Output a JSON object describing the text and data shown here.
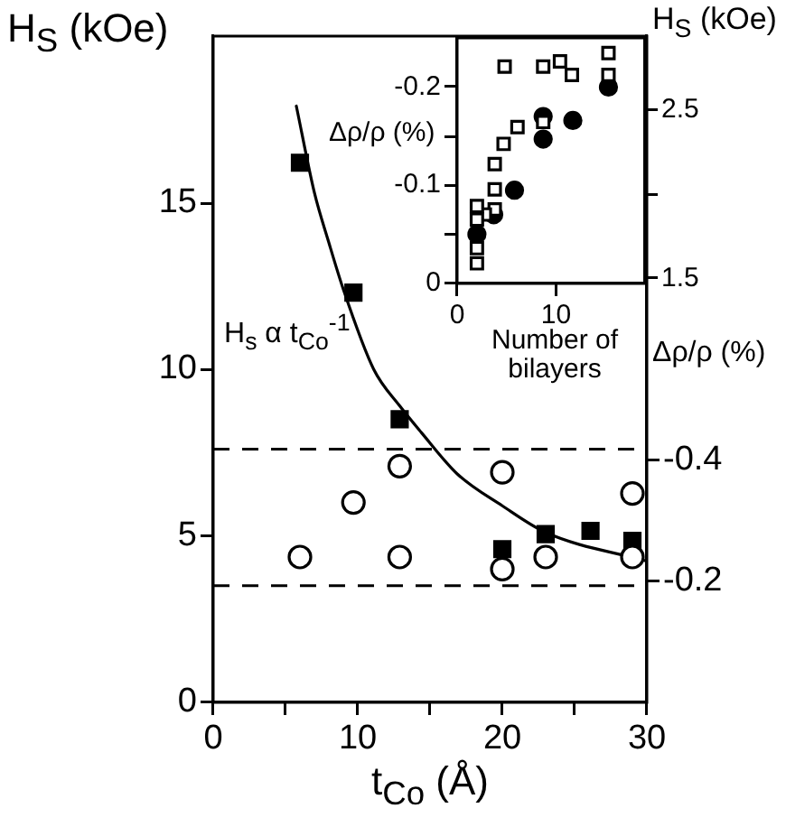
{
  "chart_data": [
    {
      "type": "scatter",
      "xlabel": "t$_{Co}$ (Å)",
      "ylabel": "H$_{S}$ (kOe)",
      "y2label": "Δρ/ρ (%)",
      "annotations": [
        "H$_{s}$ α t$_{Co}$$^{-1}$"
      ],
      "xlim": [
        0,
        30
      ],
      "xticks": [
        0,
        {
          "value": 5,
          "label": null
        },
        10,
        {
          "value": 15,
          "label": null
        },
        20,
        {
          "value": 25,
          "label": null
        },
        30
      ],
      "ylim": [
        0,
        20
      ],
      "yticks": [
        0,
        5,
        10,
        15
      ],
      "y2lim": [
        0,
        -1.1
      ],
      "y2ticks": [
        -0.2,
        -0.4
      ],
      "ref_lines": [
        {
          "axis": "y",
          "value": 7.6,
          "line_style": "dashed",
          "color": "#000000"
        },
        {
          "axis": "y",
          "value": 3.5,
          "line_style": "dashed",
          "color": "#000000"
        }
      ],
      "series": [
        {
          "type": "line",
          "color": "#000000",
          "marker": "none",
          "line_style": "solid",
          "x": [
            5.75,
            7,
            8,
            9,
            11.1,
            12.9,
            14.4,
            16.9,
            20,
            23,
            30
          ],
          "values": [
            17.9,
            15.3,
            13.8,
            12.4,
            10.0,
            8.9,
            8.1,
            6.85,
            5.9,
            5.1,
            4.24
          ]
        },
        {
          "type": "scatter",
          "color": "#000000",
          "marker": "circle",
          "axis": "y2",
          "x": [
            6,
            9.7,
            12.9,
            12.9,
            20,
            20,
            23,
            29,
            29
          ],
          "values": [
            -0.24,
            -0.33,
            -0.39,
            -0.24,
            -0.38,
            -0.22,
            -0.24,
            -0.345,
            -0.24
          ]
        },
        {
          "type": "scatter",
          "color": "#000000",
          "marker": "square",
          "x": [
            6,
            9.7,
            12.9,
            20,
            23,
            26.1,
            29
          ],
          "values": [
            16.2,
            12.3,
            8.5,
            4.6,
            5.05,
            5.15,
            4.85
          ]
        }
      ]
    },
    {
      "type": "scatter",
      "xlabel": "Number of bilayers",
      "ylabel": "Δρ/ρ (%)",
      "y2label": "H$_{S}$ (kOe)",
      "xlim": [
        0,
        19
      ],
      "xticks": [
        0,
        10
      ],
      "ylim": [
        0,
        -0.25
      ],
      "yticks": [
        0,
        {
          "value": -0.05,
          "label": null
        },
        -0.1,
        {
          "value": -0.15,
          "label": null
        },
        -0.2
      ],
      "y2lim": [
        1.47,
        2.93
      ],
      "y2ticks": [
        1.5,
        {
          "value": 2,
          "label": null
        },
        2.5
      ],
      "series": [
        {
          "type": "scatter",
          "color": "#000000",
          "marker": "square",
          "axis": "y2",
          "x": [
            4.8,
            8.7,
            10.4,
            11.6,
            15.3,
            15.3,
            8.7,
            6.1,
            4.7,
            3.8,
            3.8,
            3.8,
            2.8,
            2.0,
            2.0,
            2.0,
            2.0
          ],
          "values": [
            2.76,
            2.76,
            2.79,
            2.71,
            2.84,
            2.71,
            2.43,
            2.4,
            2.3,
            2.18,
            2.03,
            1.91,
            1.88,
            1.93,
            1.85,
            1.68,
            1.59
          ]
        },
        {
          "type": "scatter",
          "color": "#000000",
          "marker": "circle",
          "x": [
            2.0,
            3.7,
            5.8,
            8.7,
            8.7,
            11.7,
            15.3
          ],
          "values": [
            -0.05,
            -0.07,
            -0.095,
            -0.17,
            -0.147,
            -0.166,
            -0.2
          ]
        }
      ]
    }
  ]
}
